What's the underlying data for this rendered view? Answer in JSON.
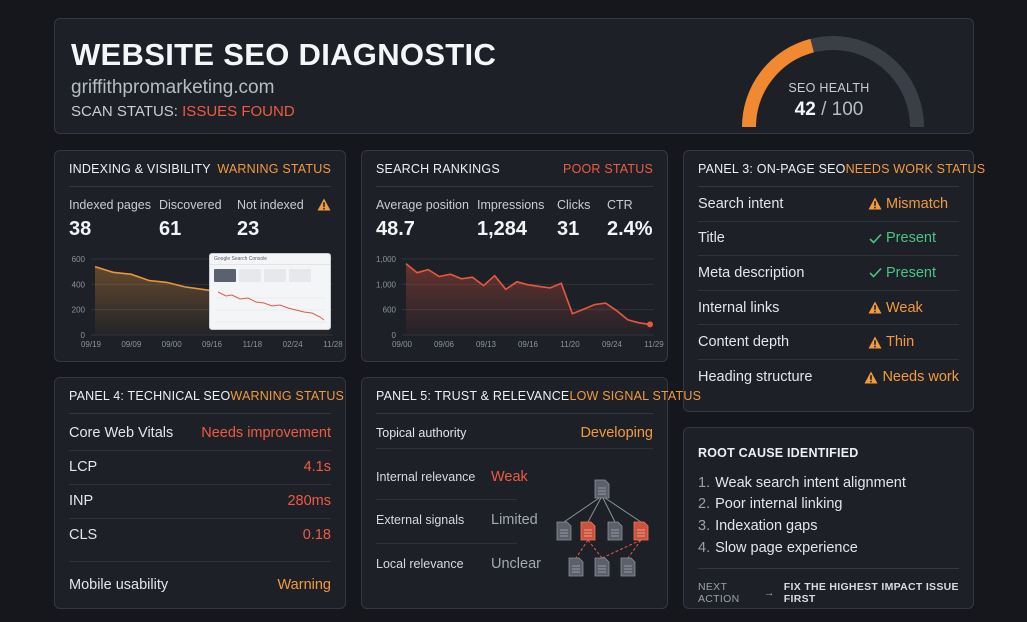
{
  "header": {
    "title": "WEBSITE SEO DIAGNOSTIC",
    "domain": "griffithpromarketing.com",
    "scan_label": "SCAN STATUS:",
    "scan_value": "ISSUES FOUND",
    "health_label": "SEO HEALTH",
    "health_score": "42",
    "health_sep": " / ",
    "health_max": "100",
    "health_fraction": 0.42
  },
  "indexing": {
    "title": "INDEXING & VISIBILITY",
    "status": "WARNING STATUS",
    "metrics": [
      {
        "label": "Indexed pages",
        "value": "38"
      },
      {
        "label": "Discovered",
        "value": "61"
      },
      {
        "label": "Not indexed",
        "value": "23"
      }
    ],
    "warning_icon": "warning-triangle-icon",
    "thumbnail_caption": "Google Search Console",
    "chart_data": {
      "type": "area",
      "x_ticks": [
        "09/19",
        "09/09",
        "09/00",
        "09/16",
        "11/18",
        "02/24",
        "11/28"
      ],
      "y_ticks": [
        "600",
        "400",
        "200",
        "0"
      ],
      "ylim": [
        0,
        600
      ],
      "values": [
        540,
        495,
        480,
        430,
        415,
        380,
        360,
        340,
        300,
        250,
        200,
        150,
        100,
        50
      ]
    }
  },
  "rankings": {
    "title": "SEARCH RANKINGS",
    "status": "POOR STATUS",
    "metrics": [
      {
        "label": "Average position",
        "value": "48.7"
      },
      {
        "label": "Impressions",
        "value": "1,284"
      },
      {
        "label": "Clicks",
        "value": "31"
      },
      {
        "label": "CTR",
        "value": "2.4%"
      }
    ],
    "chart_data": {
      "type": "area",
      "x_ticks": [
        "09/00",
        "09/06",
        "09/13",
        "09/16",
        "11/20",
        "09/24",
        "11/29"
      ],
      "y_ticks": [
        "1,000",
        "1,000",
        "600",
        "0"
      ],
      "ylim": [
        0,
        1000
      ],
      "values": [
        940,
        820,
        860,
        770,
        800,
        740,
        760,
        650,
        780,
        600,
        700,
        660,
        640,
        620,
        680,
        280,
        340,
        400,
        420,
        320,
        200,
        160,
        140
      ]
    }
  },
  "onpage": {
    "title": "PANEL 3: ON-PAGE SEO",
    "status": "NEEDS WORK STATUS",
    "rows": [
      {
        "label": "Search intent",
        "value": "Mismatch",
        "kind": "warn"
      },
      {
        "label": "Title",
        "value": "Present",
        "kind": "ok"
      },
      {
        "label": "Meta description",
        "value": "Present",
        "kind": "ok"
      },
      {
        "label": "Internal links",
        "value": "Weak",
        "kind": "warn"
      },
      {
        "label": "Content depth",
        "value": "Thin",
        "kind": "warn"
      },
      {
        "label": "Heading structure",
        "value": "Needs work",
        "kind": "warn"
      }
    ]
  },
  "technical": {
    "title": "PANEL 4: TECHNICAL SEO",
    "status": "WARNING STATUS",
    "rows": [
      {
        "label": "Core Web Vitals",
        "value": "Needs improvement"
      },
      {
        "label": "LCP",
        "value": "4.1s"
      },
      {
        "label": "INP",
        "value": "280ms"
      },
      {
        "label": "CLS",
        "value": "0.18"
      },
      {
        "label": "Mobile usability",
        "value": "Warning"
      }
    ]
  },
  "trust": {
    "title": "PANEL 5: TRUST & RELEVANCE",
    "status": "LOW SIGNAL STATUS",
    "topical_label": "Topical authority",
    "topical_value": "Developing",
    "rows": [
      {
        "label": "Internal relevance",
        "value": "Weak"
      },
      {
        "label": "External signals",
        "value": "Limited"
      },
      {
        "label": "Local relevance",
        "value": "Unclear"
      }
    ],
    "diagram_icon": "document-tree-icon"
  },
  "root_cause": {
    "title": "ROOT CAUSE IDENTIFIED",
    "items": [
      {
        "num": "1.",
        "text": "Weak search intent alignment"
      },
      {
        "num": "2.",
        "text": "Poor internal linking"
      },
      {
        "num": "3.",
        "text": "Indexation gaps"
      },
      {
        "num": "4.",
        "text": "Slow page experience"
      }
    ],
    "next_label": "NEXT ACTION",
    "next_action": "FIX THE HIGHEST IMPACT ISSUE FIRST"
  },
  "colors": {
    "orange": "#f39a3c",
    "red": "#ef5a43",
    "green": "#4bc483",
    "panel": "#1d2027",
    "background": "#15171c"
  }
}
